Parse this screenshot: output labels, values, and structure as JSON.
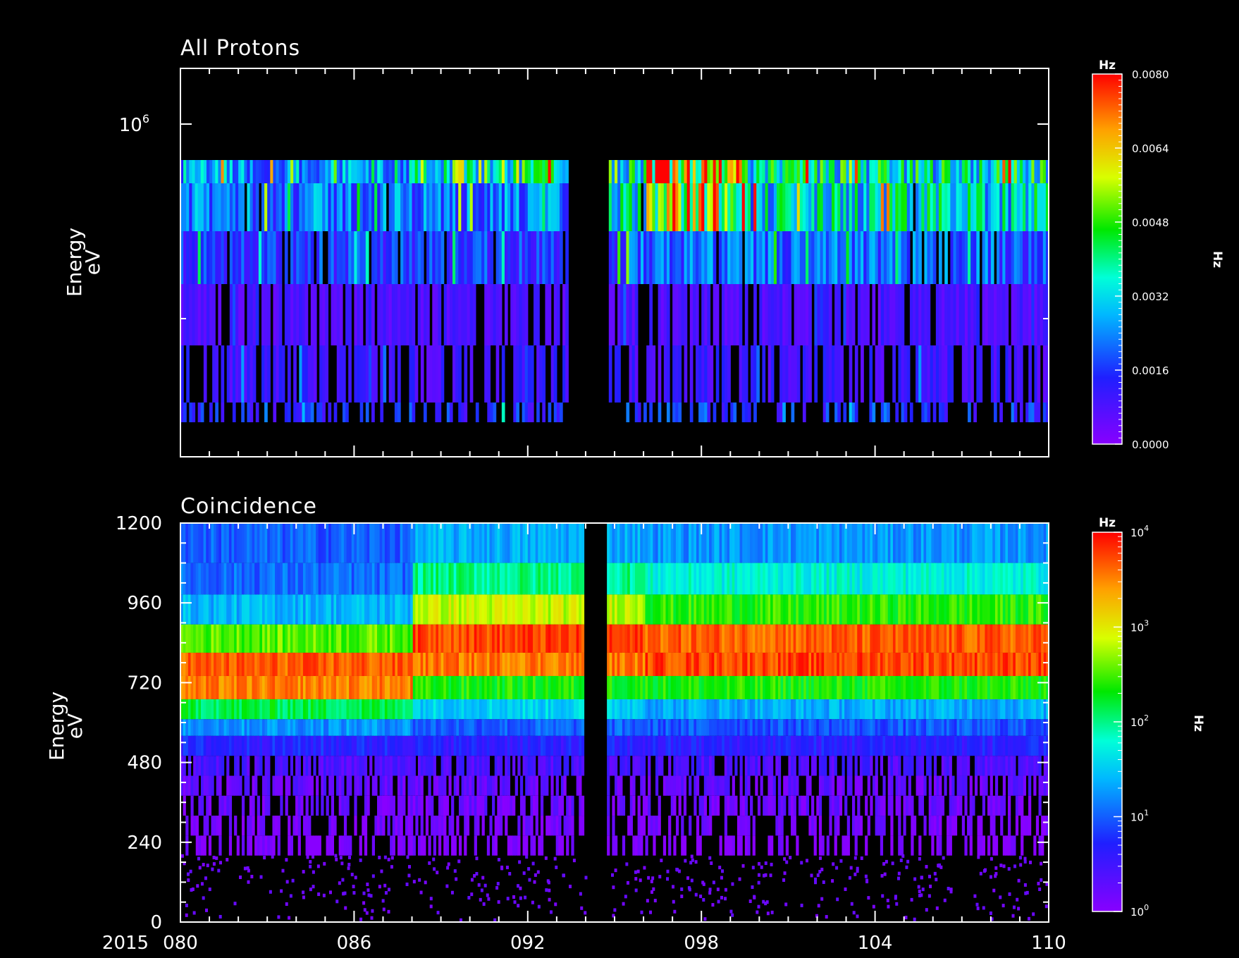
{
  "chart_data": [
    {
      "type": "heatmap",
      "title": "All Protons",
      "ylabel": "Energy",
      "yunit_label": "eV",
      "yscale": "log",
      "ytick_labels": [
        {
          "base": "10",
          "exp": "6",
          "value": 1000000
        }
      ],
      "x_year_label": "2015",
      "xlim": [
        80,
        110
      ],
      "gaps": [
        [
          93.4,
          94.75
        ]
      ],
      "energy_bands": [
        {
          "band": 1,
          "level_first_half": 0.0014,
          "level_second_half": 0.0016,
          "dropout": 0.55
        },
        {
          "band": 2,
          "level_first_half": 0.001,
          "level_second_half": 0.001,
          "dropout": 0.35
        },
        {
          "band": 3,
          "level_first_half": 0.0008,
          "level_second_half": 0.0008,
          "dropout": 0.18
        },
        {
          "band": 4,
          "level_first_half": 0.0016,
          "level_second_half": 0.002,
          "dropout": 0.08
        },
        {
          "band": 5,
          "level_first_half": 0.0022,
          "level_second_half": 0.0032,
          "dropout": 0.02
        },
        {
          "band": 6,
          "level_first_half": 0.0026,
          "level_second_half": 0.0036,
          "dropout": 0.0
        }
      ],
      "colorbar": {
        "unit": "Hz",
        "scale": "linear",
        "range": [
          0.0,
          0.008
        ],
        "tick_labels": [
          "0.0000",
          "0.0016",
          "0.0032",
          "0.0048",
          "0.0064",
          "0.0080"
        ],
        "side_label": "Hz"
      }
    },
    {
      "type": "heatmap",
      "title": "Coincidence",
      "ylabel": "Energy",
      "yunit_label": "eV",
      "yscale": "linear",
      "ylim": [
        0,
        1200
      ],
      "ytick_labels": [
        "0",
        "240",
        "480",
        "720",
        "960",
        "1200"
      ],
      "x_year_label": "2015",
      "xlim": [
        80,
        110
      ],
      "xtick_labels": [
        "080",
        "086",
        "092",
        "098",
        "104",
        "110"
      ],
      "gaps": [
        [
          94.0,
          94.7
        ]
      ],
      "energy_bands_eV": [
        {
          "lo": 1080,
          "hi": 1200,
          "log10_first": 1.0,
          "log10_mid": 1.35,
          "log10_last": 1.25
        },
        {
          "lo": 985,
          "hi": 1080,
          "log10_first": 1.05,
          "log10_mid": 2.0,
          "log10_last": 1.75
        },
        {
          "lo": 895,
          "hi": 985,
          "log10_first": 1.4,
          "log10_mid": 2.85,
          "log10_last": 2.4
        },
        {
          "lo": 810,
          "hi": 895,
          "log10_first": 2.55,
          "log10_mid": 3.75,
          "log10_last": 3.65
        },
        {
          "lo": 740,
          "hi": 810,
          "log10_first": 3.65,
          "log10_mid": 3.55,
          "log10_last": 3.75
        },
        {
          "lo": 670,
          "hi": 740,
          "log10_first": 3.5,
          "log10_mid": 2.35,
          "log10_last": 2.35
        },
        {
          "lo": 610,
          "hi": 670,
          "log10_first": 2.15,
          "log10_mid": 1.55,
          "log10_last": 1.35
        },
        {
          "lo": 560,
          "hi": 610,
          "log10_first": 1.25,
          "log10_mid": 1.0,
          "log10_last": 0.95
        },
        {
          "lo": 500,
          "hi": 560,
          "log10_first": 0.7,
          "log10_mid": 0.65,
          "log10_last": 0.65
        },
        {
          "lo": 440,
          "hi": 500,
          "log10_first": 0.4,
          "log10_mid": 0.4,
          "log10_last": 0.4
        },
        {
          "lo": 380,
          "hi": 440,
          "log10_first": 0.25,
          "log10_mid": 0.25,
          "log10_last": 0.25
        },
        {
          "lo": 320,
          "hi": 380,
          "log10_first": 0.18,
          "log10_mid": 0.18,
          "log10_last": 0.18
        },
        {
          "lo": 260,
          "hi": 320,
          "log10_first": 0.1,
          "log10_mid": 0.1,
          "log10_last": 0.1
        },
        {
          "lo": 200,
          "hi": 260,
          "log10_first": 0.05,
          "log10_mid": 0.05,
          "log10_last": 0.05
        }
      ],
      "colorbar": {
        "unit": "Hz",
        "scale": "log",
        "range": [
          1,
          10000
        ],
        "tick_labels": [
          {
            "base": "10",
            "exp": "0"
          },
          {
            "base": "10",
            "exp": "1"
          },
          {
            "base": "10",
            "exp": "2"
          },
          {
            "base": "10",
            "exp": "3"
          },
          {
            "base": "10",
            "exp": "4"
          }
        ],
        "side_label": "Hz"
      }
    }
  ]
}
